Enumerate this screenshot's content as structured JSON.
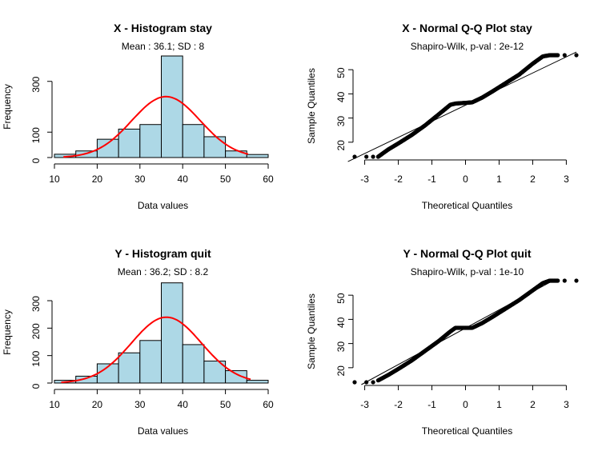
{
  "chart_data": [
    {
      "type": "bar",
      "panel": "histogram",
      "title": "X - Histogram stay",
      "subtitle": "Mean : 36.1; SD : 8",
      "xlabel": "Data values",
      "ylabel": "Frequency",
      "xlim": [
        10,
        60
      ],
      "ylim": [
        0,
        400
      ],
      "x_ticks": [
        10,
        20,
        30,
        40,
        50,
        60
      ],
      "y_ticks": [
        0,
        100,
        300
      ],
      "bin_edges": [
        10,
        15,
        20,
        25,
        30,
        35,
        40,
        45,
        50,
        55,
        60
      ],
      "values": [
        13,
        26,
        72,
        112,
        130,
        400,
        130,
        82,
        26,
        12
      ],
      "bar_color": "#add8e6",
      "curve_color": "#ff0000",
      "mean": 36.1,
      "sd": 8,
      "curve_peak": 240
    },
    {
      "type": "scatter",
      "panel": "qq",
      "title": "X - Normal Q-Q Plot stay",
      "subtitle": "Shapiro-Wilk, p-val : 2e-12",
      "xlabel": "Theoretical Quantiles",
      "ylabel": "Sample Quantiles",
      "xlim": [
        -3.3,
        3.3
      ],
      "ylim": [
        13,
        57
      ],
      "x_ticks": [
        -3,
        -2,
        -1,
        0,
        1,
        2,
        3
      ],
      "y_ticks": [
        20,
        30,
        40,
        50
      ],
      "sample_quantiles_by_theoretical": [
        [
          -3.3,
          14
        ],
        [
          -2.9,
          14
        ],
        [
          -2.6,
          14
        ],
        [
          -2.3,
          17
        ],
        [
          -2.0,
          19.5
        ],
        [
          -1.6,
          23
        ],
        [
          -1.2,
          27
        ],
        [
          -0.8,
          31.5
        ],
        [
          -0.45,
          35.5
        ],
        [
          -0.3,
          36
        ],
        [
          0.2,
          36.5
        ],
        [
          0.5,
          38.5
        ],
        [
          0.8,
          41
        ],
        [
          1.2,
          44.5
        ],
        [
          1.6,
          48
        ],
        [
          2.0,
          52.5
        ],
        [
          2.3,
          55.5
        ],
        [
          2.5,
          56
        ],
        [
          2.8,
          56
        ],
        [
          3.3,
          56
        ]
      ],
      "reference_line": [
        [
          -3.5,
          12
        ],
        [
          3.3,
          57.3
        ]
      ]
    },
    {
      "type": "bar",
      "panel": "histogram",
      "title": "Y - Histogram quit",
      "subtitle": "Mean : 36.2; SD : 8.2",
      "xlabel": "Data values",
      "ylabel": "Frequency",
      "xlim": [
        10,
        60
      ],
      "ylim": [
        0,
        370
      ],
      "x_ticks": [
        10,
        20,
        30,
        40,
        50,
        60
      ],
      "y_ticks": [
        0,
        100,
        200,
        300
      ],
      "bin_edges": [
        10,
        15,
        20,
        25,
        30,
        35,
        40,
        45,
        50,
        55,
        60
      ],
      "values": [
        10,
        25,
        70,
        110,
        155,
        365,
        140,
        80,
        45,
        10
      ],
      "bar_color": "#add8e6",
      "curve_color": "#ff0000",
      "mean": 36.2,
      "sd": 8.2,
      "curve_peak": 240
    },
    {
      "type": "scatter",
      "panel": "qq",
      "title": "Y - Normal Q-Q Plot quit",
      "subtitle": "Shapiro-Wilk, p-val : 1e-10",
      "xlabel": "Theoretical Quantiles",
      "ylabel": "Sample Quantiles",
      "xlim": [
        -3.3,
        3.3
      ],
      "ylim": [
        13,
        57
      ],
      "x_ticks": [
        -3,
        -2,
        -1,
        0,
        1,
        2,
        3
      ],
      "y_ticks": [
        20,
        30,
        40,
        50
      ],
      "sample_quantiles_by_theoretical": [
        [
          -3.3,
          14
        ],
        [
          -3.0,
          14
        ],
        [
          -2.7,
          14
        ],
        [
          -2.3,
          17
        ],
        [
          -2.0,
          19.5
        ],
        [
          -1.6,
          23
        ],
        [
          -1.2,
          27
        ],
        [
          -0.8,
          31
        ],
        [
          -0.45,
          35
        ],
        [
          -0.3,
          36.5
        ],
        [
          0.2,
          36.5
        ],
        [
          0.5,
          38.5
        ],
        [
          0.8,
          41
        ],
        [
          1.2,
          44.5
        ],
        [
          1.6,
          48
        ],
        [
          2.0,
          52
        ],
        [
          2.3,
          55
        ],
        [
          2.5,
          56
        ],
        [
          2.8,
          56
        ],
        [
          3.3,
          56
        ]
      ],
      "reference_line": [
        [
          -3.1,
          13
        ],
        [
          2.6,
          56
        ]
      ]
    }
  ]
}
